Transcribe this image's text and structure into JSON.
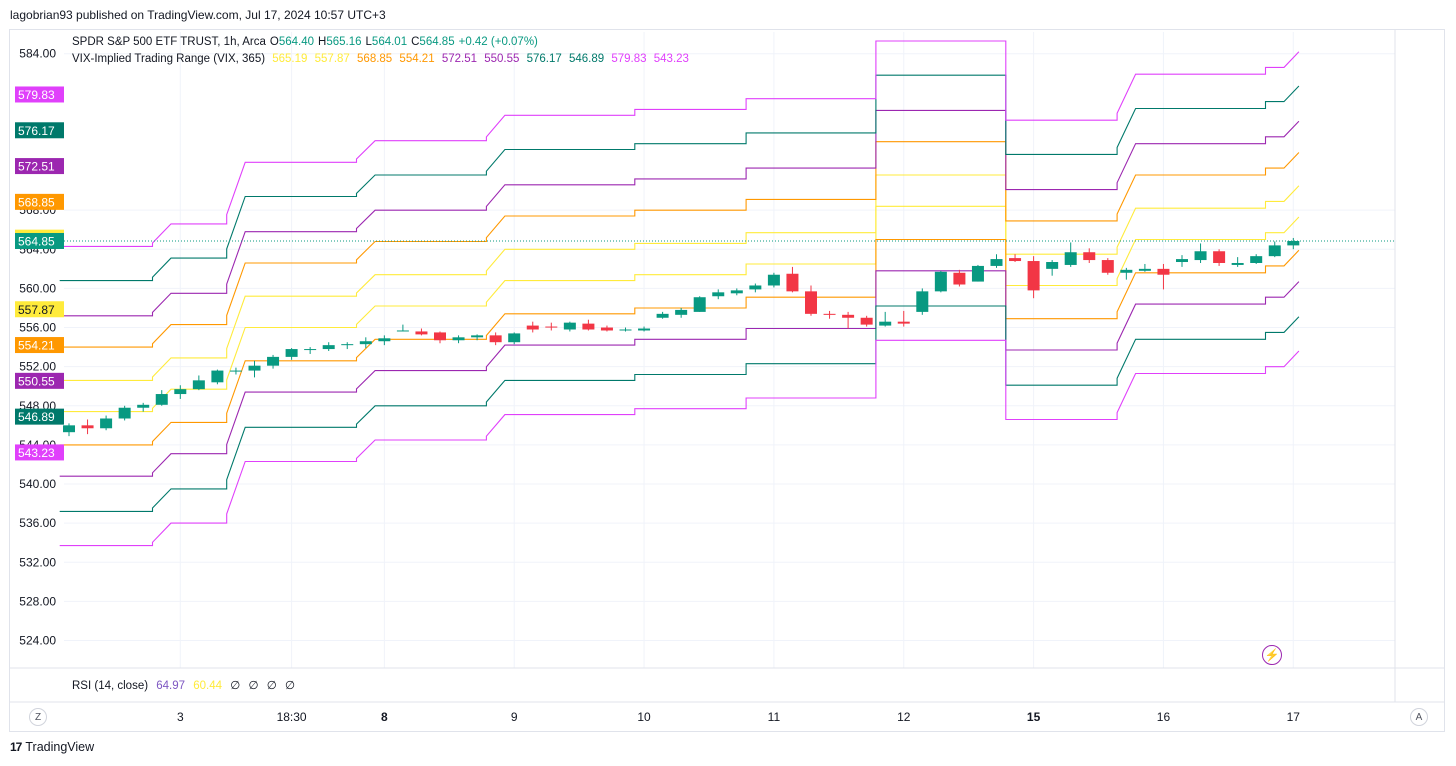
{
  "publisher_line": "lagobrian93 published on TradingView.com, Jul 17, 2024 10:57 UTC+3",
  "footer": {
    "brand": "TradingView",
    "logo_icon": "tradingview-logo-icon"
  },
  "legend": {
    "symbol": "SPDR S&P 500 ETF TRUST, 1h, Arca",
    "open_label": "O",
    "open": "564.40",
    "high_label": "H",
    "high": "565.16",
    "low_label": "L",
    "low": "564.01",
    "close_label": "C",
    "close": "564.85",
    "change": "+0.42 (+0.07%)",
    "indicator_name": "VIX-Implied Trading Range (VIX, 365)",
    "indicator_values": [
      "565.19",
      "557.87",
      "568.85",
      "554.21",
      "572.51",
      "550.55",
      "576.17",
      "546.89",
      "579.83",
      "543.23"
    ]
  },
  "rsi": {
    "label": "RSI (14, close)",
    "value1": "64.97",
    "value2": "60.44",
    "zeros": [
      "∅",
      "∅",
      "∅",
      "∅"
    ]
  },
  "buttons": {
    "z": "Z",
    "a": "A"
  },
  "colors": {
    "up": "#089981",
    "down": "#f23645",
    "ring1": "#ffeb3b",
    "ring2": "#ff9800",
    "ring3": "#9c27b0",
    "ring4": "#00796b",
    "ring5": "#e040fb",
    "grid": "#f0f3fa",
    "axis_text": "#131722"
  },
  "chart_data": {
    "type": "candlestick",
    "title": "SPDR S&P 500 ETF TRUST, 1h, Arca",
    "ylim": [
      521.5,
      587.5
    ],
    "y_ticks": [
      "524.00",
      "528.00",
      "532.00",
      "536.00",
      "540.00",
      "544.00",
      "548.00",
      "552.00",
      "556.00",
      "560.00",
      "564.00",
      "568.00",
      "584.00"
    ],
    "x_ticks": [
      {
        "label": "3",
        "bar": 6,
        "bold": false
      },
      {
        "label": "18:30",
        "bar": 12,
        "bold": false
      },
      {
        "label": "8",
        "bar": 17,
        "bold": true
      },
      {
        "label": "9",
        "bar": 24,
        "bold": false
      },
      {
        "label": "10",
        "bar": 31,
        "bold": false
      },
      {
        "label": "11",
        "bar": 38,
        "bold": false
      },
      {
        "label": "12",
        "bar": 45,
        "bold": false
      },
      {
        "label": "15",
        "bar": 52,
        "bold": true
      },
      {
        "label": "16",
        "bar": 59,
        "bold": false
      },
      {
        "label": "17",
        "bar": 66,
        "bold": false
      }
    ],
    "candles": [
      [
        545.3,
        546.2,
        544.9,
        546.0
      ],
      [
        546.0,
        546.6,
        545.1,
        545.7
      ],
      [
        545.7,
        547.0,
        545.5,
        546.7
      ],
      [
        546.7,
        548.0,
        546.5,
        547.8
      ],
      [
        547.8,
        548.3,
        547.4,
        548.1
      ],
      [
        548.1,
        549.6,
        548.0,
        549.2
      ],
      [
        549.2,
        550.1,
        548.7,
        549.7
      ],
      [
        549.7,
        551.1,
        549.6,
        550.6
      ],
      [
        550.4,
        551.7,
        550.2,
        551.6
      ],
      [
        551.6,
        551.9,
        551.2,
        551.6
      ],
      [
        551.6,
        552.6,
        550.9,
        552.1
      ],
      [
        552.1,
        553.2,
        551.8,
        553.0
      ],
      [
        553.0,
        553.9,
        552.7,
        553.8
      ],
      [
        553.8,
        554.0,
        553.3,
        553.8
      ],
      [
        553.8,
        554.5,
        553.6,
        554.2
      ],
      [
        554.2,
        554.5,
        553.8,
        554.3
      ],
      [
        554.3,
        555.0,
        553.9,
        554.6
      ],
      [
        554.6,
        555.2,
        554.2,
        554.9
      ],
      [
        555.7,
        556.3,
        555.6,
        555.7
      ],
      [
        555.6,
        555.9,
        555.2,
        555.3
      ],
      [
        555.5,
        555.6,
        554.4,
        554.7
      ],
      [
        554.7,
        555.2,
        554.4,
        555.0
      ],
      [
        555.0,
        555.3,
        554.7,
        555.2
      ],
      [
        555.2,
        555.5,
        554.2,
        554.5
      ],
      [
        554.5,
        555.5,
        554.3,
        555.4
      ],
      [
        556.2,
        556.6,
        555.5,
        555.8
      ],
      [
        556.1,
        556.5,
        555.7,
        556.0
      ],
      [
        555.8,
        556.6,
        555.6,
        556.5
      ],
      [
        556.4,
        556.8,
        555.7,
        555.8
      ],
      [
        556.0,
        556.2,
        555.6,
        555.7
      ],
      [
        555.8,
        556.0,
        555.6,
        555.8
      ],
      [
        555.7,
        556.1,
        555.6,
        555.9
      ],
      [
        557.0,
        557.6,
        556.9,
        557.4
      ],
      [
        557.3,
        558.0,
        557.0,
        557.8
      ],
      [
        557.6,
        559.2,
        557.6,
        559.1
      ],
      [
        559.2,
        559.9,
        558.9,
        559.6
      ],
      [
        559.5,
        560.0,
        559.3,
        559.8
      ],
      [
        559.9,
        560.5,
        559.6,
        560.3
      ],
      [
        560.3,
        561.6,
        560.1,
        561.4
      ],
      [
        561.5,
        562.2,
        559.6,
        559.7
      ],
      [
        559.7,
        560.3,
        557.2,
        557.4
      ],
      [
        557.4,
        557.7,
        556.9,
        557.3
      ],
      [
        557.3,
        557.6,
        555.9,
        557.0
      ],
      [
        557.0,
        557.2,
        556.1,
        556.3
      ],
      [
        556.2,
        557.6,
        556.1,
        556.6
      ],
      [
        556.6,
        557.7,
        556.1,
        556.4
      ],
      [
        557.6,
        560.0,
        557.3,
        559.7
      ],
      [
        559.7,
        561.8,
        559.6,
        561.7
      ],
      [
        561.6,
        561.9,
        560.2,
        560.4
      ],
      [
        560.7,
        562.4,
        560.7,
        562.3
      ],
      [
        562.3,
        563.5,
        562.1,
        563.0
      ],
      [
        563.1,
        563.5,
        562.7,
        562.8
      ],
      [
        562.8,
        563.3,
        559.0,
        559.8
      ],
      [
        562.0,
        562.9,
        561.3,
        562.7
      ],
      [
        562.4,
        564.7,
        562.2,
        563.7
      ],
      [
        563.7,
        564.1,
        562.6,
        562.9
      ],
      [
        562.9,
        563.1,
        561.4,
        561.6
      ],
      [
        561.6,
        562.1,
        560.9,
        561.9
      ],
      [
        561.8,
        562.5,
        561.7,
        562.0
      ],
      [
        562.0,
        562.5,
        559.9,
        561.4
      ],
      [
        562.7,
        563.4,
        562.2,
        563.0
      ],
      [
        562.9,
        564.6,
        562.6,
        563.8
      ],
      [
        563.8,
        564.0,
        562.3,
        562.6
      ],
      [
        562.4,
        563.2,
        562.2,
        562.6
      ],
      [
        562.6,
        563.5,
        562.5,
        563.3
      ],
      [
        563.3,
        564.8,
        563.2,
        564.4
      ],
      [
        564.4,
        565.16,
        564.01,
        564.85
      ]
    ],
    "current_price": 564.85,
    "range_segments": [
      {
        "start": 0,
        "end": 4,
        "center": 549.0,
        "next_center": 551.3
      },
      {
        "start": 6,
        "end": 8,
        "center": 551.3,
        "next_center": 557.6
      },
      {
        "start": 10,
        "end": 15,
        "center": 557.6,
        "next_center": 559.8
      },
      {
        "start": 17,
        "end": 22,
        "center": 559.8,
        "next_center": 562.4
      },
      {
        "start": 24,
        "end": 30,
        "center": 562.4,
        "next_center": 563.0
      },
      {
        "start": 31,
        "end": 36,
        "center": 563.0,
        "next_center": 564.1
      },
      {
        "start": 37,
        "end": 43,
        "center": 564.1,
        "next_center": 570.0
      },
      {
        "start": 44,
        "end": 50,
        "center": 570.0,
        "next_center": 561.9
      },
      {
        "start": 51,
        "end": 56,
        "center": 561.9,
        "next_center": 566.6
      },
      {
        "start": 58,
        "end": 64,
        "center": 566.6,
        "next_center": 567.3
      },
      {
        "start": 65,
        "end": 65,
        "center": 567.3,
        "next_center": 567.3
      }
    ],
    "range_offsets": [
      1.6,
      5.0,
      8.2,
      11.8,
      15.3
    ],
    "price_labels": [
      {
        "text": "579.83",
        "value": 579.83,
        "color": "#e040fb"
      },
      {
        "text": "576.17",
        "value": 576.17,
        "color": "#00796b"
      },
      {
        "text": "572.51",
        "value": 572.51,
        "color": "#9c27b0"
      },
      {
        "text": "568.85",
        "value": 568.85,
        "color": "#ff9800"
      },
      {
        "text": "565.19",
        "value": 565.19,
        "color": "#ffeb3b"
      },
      {
        "text": "564.85",
        "value": 564.85,
        "color": "#089981"
      },
      {
        "text": "557.87",
        "value": 557.87,
        "color": "#ffeb3b"
      },
      {
        "text": "554.21",
        "value": 554.21,
        "color": "#ff9800"
      },
      {
        "text": "550.55",
        "value": 550.55,
        "color": "#9c27b0"
      },
      {
        "text": "546.89",
        "value": 546.89,
        "color": "#00796b"
      },
      {
        "text": "543.23",
        "value": 543.23,
        "color": "#e040fb"
      }
    ]
  }
}
